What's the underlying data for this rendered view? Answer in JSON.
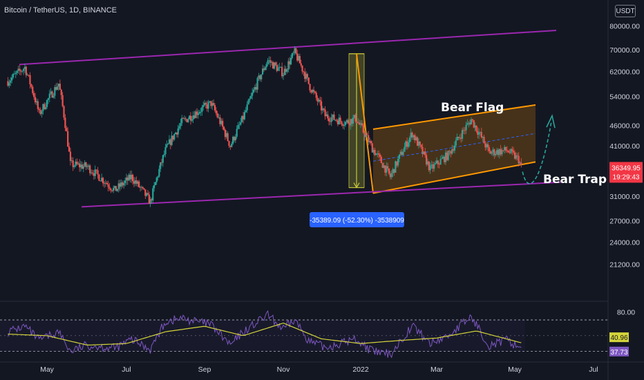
{
  "header": {
    "symbol_title": "Bitcoin / TetherUS, 1D, BINANCE",
    "currency": "USDT"
  },
  "chart_data": [
    {
      "type": "line",
      "series": [
        {
          "name": "",
          "values": [
            {
              "x": "2021-04-01",
              "y": 58800
            },
            {
              "x": "2021-04-14",
              "y": 63500
            },
            {
              "x": "2021-04-25",
              "y": 49000
            },
            {
              "x": "2021-05-10",
              "y": 58000
            },
            {
              "x": "2021-05-19",
              "y": 37000
            },
            {
              "x": "2021-06-01",
              "y": 36500
            },
            {
              "x": "2021-06-22",
              "y": 32000
            },
            {
              "x": "2021-07-05",
              "y": 34500
            },
            {
              "x": "2021-07-20",
              "y": 30000
            },
            {
              "x": "2021-08-01",
              "y": 40000
            },
            {
              "x": "2021-08-14",
              "y": 46800
            },
            {
              "x": "2021-09-06",
              "y": 52000
            },
            {
              "x": "2021-09-21",
              "y": 41000
            },
            {
              "x": "2021-10-01",
              "y": 48000
            },
            {
              "x": "2021-10-20",
              "y": 66000
            },
            {
              "x": "2021-11-01",
              "y": 61500
            },
            {
              "x": "2021-11-10",
              "y": 69000
            },
            {
              "x": "2021-11-22",
              "y": 57000
            },
            {
              "x": "2021-12-04",
              "y": 48500
            },
            {
              "x": "2021-12-20",
              "y": 46700
            },
            {
              "x": "2021-12-28",
              "y": 47800
            },
            {
              "x": "2022-01-10",
              "y": 40500
            },
            {
              "x": "2022-01-24",
              "y": 34500
            },
            {
              "x": "2022-02-10",
              "y": 44000
            },
            {
              "x": "2022-02-24",
              "y": 36000
            },
            {
              "x": "2022-03-10",
              "y": 39000
            },
            {
              "x": "2022-03-28",
              "y": 47500
            },
            {
              "x": "2022-04-11",
              "y": 39500
            },
            {
              "x": "2022-04-25",
              "y": 40000
            },
            {
              "x": "2022-05-04",
              "y": 38000
            },
            {
              "x": "2022-05-06",
              "y": 36349.95
            }
          ]
        }
      ],
      "xlabels": [
        "May",
        "Jul",
        "Sep",
        "Nov",
        "2022",
        "Mar",
        "May",
        "Jul"
      ],
      "y_ticks": [
        "80000.00",
        "70000.00",
        "62000.00",
        "54000.00",
        "46000.00",
        "41000.00",
        "31000.00",
        "27000.00",
        "24000.00",
        "21200.00"
      ],
      "y_scale": "log",
      "ylim": [
        18500,
        82000
      ],
      "last_price": "36349.95",
      "countdown": "19:29:43",
      "annotations": {
        "bear_flag": "Bear Flag",
        "bear_trap": "Bear Trap",
        "measure": "-35389.09 (-52.30%) -3538909"
      },
      "colors": {
        "up": "#26a69a",
        "down": "#ef5350",
        "channel": "#9c27b0",
        "flag": "#ff9800",
        "measure": "#c6c639",
        "arrow": "#26a69a",
        "measure_label": "#2962ff"
      },
      "grid": false
    },
    {
      "type": "line",
      "series": [
        {
          "name": "",
          "values": [
            {
              "x": "2021-04-01",
              "y": 55
            },
            {
              "x": "2021-04-14",
              "y": 62
            },
            {
              "x": "2021-04-25",
              "y": 44
            },
            {
              "x": "2021-05-10",
              "y": 55
            },
            {
              "x": "2021-05-19",
              "y": 30
            },
            {
              "x": "2021-06-01",
              "y": 38
            },
            {
              "x": "2021-06-22",
              "y": 34
            },
            {
              "x": "2021-07-05",
              "y": 45
            },
            {
              "x": "2021-07-20",
              "y": 33
            },
            {
              "x": "2021-08-01",
              "y": 68
            },
            {
              "x": "2021-08-14",
              "y": 72
            },
            {
              "x": "2021-09-06",
              "y": 64
            },
            {
              "x": "2021-09-21",
              "y": 38
            },
            {
              "x": "2021-10-01",
              "y": 55
            },
            {
              "x": "2021-10-20",
              "y": 76
            },
            {
              "x": "2021-11-01",
              "y": 58
            },
            {
              "x": "2021-11-10",
              "y": 70
            },
            {
              "x": "2021-11-22",
              "y": 42
            },
            {
              "x": "2021-12-04",
              "y": 35
            },
            {
              "x": "2021-12-20",
              "y": 42
            },
            {
              "x": "2021-12-28",
              "y": 46
            },
            {
              "x": "2022-01-10",
              "y": 30
            },
            {
              "x": "2022-01-24",
              "y": 26
            },
            {
              "x": "2022-02-10",
              "y": 63
            },
            {
              "x": "2022-02-24",
              "y": 40
            },
            {
              "x": "2022-03-10",
              "y": 50
            },
            {
              "x": "2022-03-28",
              "y": 74
            },
            {
              "x": "2022-04-11",
              "y": 38
            },
            {
              "x": "2022-04-25",
              "y": 44
            },
            {
              "x": "2022-05-04",
              "y": 36
            },
            {
              "x": "2022-05-06",
              "y": 37.73
            }
          ]
        },
        {
          "name": "",
          "values": [
            {
              "x": "2021-04-01",
              "y": 52
            },
            {
              "x": "2021-05-01",
              "y": 50
            },
            {
              "x": "2021-06-01",
              "y": 38
            },
            {
              "x": "2021-07-01",
              "y": 40
            },
            {
              "x": "2021-08-01",
              "y": 55
            },
            {
              "x": "2021-09-01",
              "y": 62
            },
            {
              "x": "2021-10-01",
              "y": 50
            },
            {
              "x": "2021-11-01",
              "y": 66
            },
            {
              "x": "2021-12-01",
              "y": 46
            },
            {
              "x": "2022-01-01",
              "y": 40
            },
            {
              "x": "2022-02-01",
              "y": 44
            },
            {
              "x": "2022-03-01",
              "y": 47
            },
            {
              "x": "2022-04-01",
              "y": 56
            },
            {
              "x": "2022-05-06",
              "y": 40.96
            }
          ]
        }
      ],
      "ylim": [
        20,
        85
      ],
      "y_ticks": [
        "80.00"
      ],
      "bands": [
        70,
        30
      ],
      "last_values": [
        "40.96",
        "37.73"
      ],
      "colors": {
        "rsi": "#7e57c2",
        "ma": "#d4d43a",
        "band": "#b2b5be"
      },
      "grid": false
    }
  ]
}
